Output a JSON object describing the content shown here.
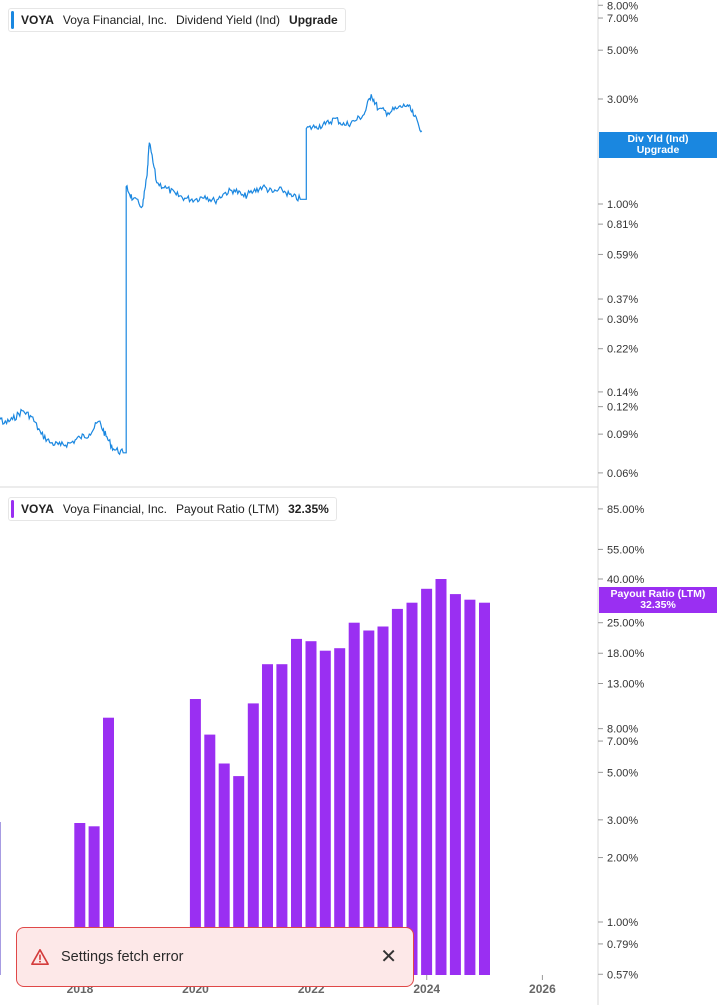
{
  "top_legend": {
    "ticker": "VOYA",
    "company": "Voya Financial, Inc.",
    "metric": "Dividend Yield (Ind)",
    "action": "Upgrade"
  },
  "top_tag": {
    "line1": "Div Yld (Ind)",
    "line2": "Upgrade"
  },
  "bottom_legend": {
    "ticker": "VOYA",
    "company": "Voya Financial, Inc.",
    "metric": "Payout Ratio (LTM)",
    "value": "32.35%"
  },
  "bottom_tag": {
    "line1": "Payout Ratio (LTM)",
    "line2": "32.35%"
  },
  "toast": {
    "message": "Settings fetch error"
  },
  "colors": {
    "yield_line": "#1a87e0",
    "payout_bar": "#9a2ff2",
    "toast_accent": "#e04848"
  },
  "chart_data": [
    {
      "type": "line",
      "scale": "log",
      "series": [
        {
          "name": "Dividend Yield (Ind)",
          "points": [
            [
              "2016-05-01",
              0.145
            ],
            [
              "2016-07-01",
              0.13
            ],
            [
              "2016-09-01",
              0.1
            ],
            [
              "2016-11-01",
              0.105
            ],
            [
              "2017-01-01",
              0.115
            ],
            [
              "2017-03-01",
              0.108
            ],
            [
              "2017-05-01",
              0.09
            ],
            [
              "2017-07-01",
              0.082
            ],
            [
              "2017-09-01",
              0.08
            ],
            [
              "2017-11-01",
              0.082
            ],
            [
              "2018-01-01",
              0.087
            ],
            [
              "2018-03-01",
              0.09
            ],
            [
              "2018-05-01",
              0.103
            ],
            [
              "2018-06-15",
              0.088
            ],
            [
              "2018-08-01",
              0.077
            ],
            [
              "2018-10-01",
              0.074
            ],
            [
              "2018-10-20",
              1.2
            ],
            [
              "2018-12-01",
              1.05
            ],
            [
              "2019-02-01",
              0.98
            ],
            [
              "2019-03-01",
              1.35
            ],
            [
              "2019-03-15",
              1.9
            ],
            [
              "2019-05-01",
              1.25
            ],
            [
              "2019-07-01",
              1.18
            ],
            [
              "2019-09-01",
              1.1
            ],
            [
              "2019-11-01",
              1.06
            ],
            [
              "2020-01-01",
              1.05
            ],
            [
              "2020-03-01",
              1.09
            ],
            [
              "2020-05-01",
              1.03
            ],
            [
              "2020-07-01",
              1.12
            ],
            [
              "2020-09-01",
              1.16
            ],
            [
              "2020-11-01",
              1.08
            ],
            [
              "2021-01-01",
              1.14
            ],
            [
              "2021-03-01",
              1.2
            ],
            [
              "2021-05-01",
              1.13
            ],
            [
              "2021-07-01",
              1.16
            ],
            [
              "2021-09-01",
              1.08
            ],
            [
              "2021-11-01",
              1.05
            ],
            [
              "2021-12-01",
              2.2
            ],
            [
              "2022-02-01",
              2.25
            ],
            [
              "2022-04-01",
              2.3
            ],
            [
              "2022-06-01",
              2.45
            ],
            [
              "2022-08-01",
              2.28
            ],
            [
              "2022-10-01",
              2.38
            ],
            [
              "2022-12-01",
              2.55
            ],
            [
              "2023-01-15",
              3.15
            ],
            [
              "2023-03-01",
              2.7
            ],
            [
              "2023-05-01",
              2.6
            ],
            [
              "2023-07-01",
              2.72
            ],
            [
              "2023-09-01",
              2.82
            ],
            [
              "2023-10-15",
              2.5
            ],
            [
              "2023-12-01",
              2.15
            ]
          ]
        }
      ],
      "y_ticks": [
        "8.00%",
        "7.00%",
        "5.00%",
        "3.00%",
        "1.00%",
        "0.81%",
        "0.59%",
        "0.37%",
        "0.30%",
        "0.22%",
        "0.14%",
        "0.12%",
        "0.09%",
        "0.06%"
      ]
    },
    {
      "type": "bar",
      "scale": "log",
      "series": [
        {
          "name": "Payout Ratio (LTM)",
          "points": [
            [
              "2017-12-31",
              2.9
            ],
            [
              "2018-03-31",
              2.8
            ],
            [
              "2018-06-30",
              9.0
            ],
            [
              "2019-12-31",
              11.0
            ],
            [
              "2020-03-31",
              7.5
            ],
            [
              "2020-06-30",
              5.5
            ],
            [
              "2020-09-30",
              4.8
            ],
            [
              "2020-12-31",
              10.5
            ],
            [
              "2021-03-31",
              16.0
            ],
            [
              "2021-06-30",
              16.0
            ],
            [
              "2021-09-30",
              21.0
            ],
            [
              "2021-12-31",
              20.5
            ],
            [
              "2022-03-31",
              18.5
            ],
            [
              "2022-06-30",
              19.0
            ],
            [
              "2022-09-30",
              25.0
            ],
            [
              "2022-12-31",
              23.0
            ],
            [
              "2023-03-31",
              24.0
            ],
            [
              "2023-06-30",
              29.0
            ],
            [
              "2023-09-30",
              31.0
            ],
            [
              "2023-12-31",
              36.0
            ],
            [
              "2024-03-31",
              40.0
            ],
            [
              "2024-06-30",
              34.0
            ],
            [
              "2024-09-30",
              32.0
            ],
            [
              "2024-12-31",
              31.0
            ]
          ]
        }
      ],
      "y_ticks": [
        "85.00%",
        "55.00%",
        "40.00%",
        "25.00%",
        "18.00%",
        "13.00%",
        "8.00%",
        "7.00%",
        "5.00%",
        "3.00%",
        "2.00%",
        "1.00%",
        "0.79%",
        "0.57%"
      ]
    }
  ],
  "x_ticks": [
    "2018",
    "2020",
    "2022",
    "2024",
    "2026"
  ]
}
